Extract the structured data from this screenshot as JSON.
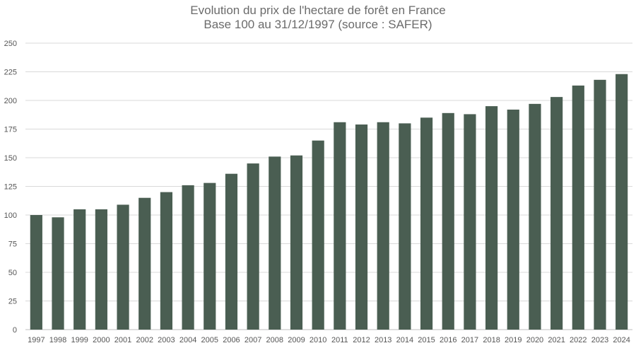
{
  "chart_data": {
    "type": "bar",
    "title_line1": "Evolution du prix de l'hectare de forêt en France",
    "title_line2": "Base 100 au 31/12/1997 (source : SAFER)",
    "categories": [
      "1997",
      "1998",
      "1999",
      "2000",
      "2001",
      "2002",
      "2003",
      "2004",
      "2005",
      "2006",
      "2007",
      "2008",
      "2009",
      "2010",
      "2011",
      "2012",
      "2013",
      "2014",
      "2015",
      "2016",
      "2017",
      "2018",
      "2019",
      "2020",
      "2021",
      "2022",
      "2023",
      "2024"
    ],
    "values": [
      100,
      98,
      105,
      105,
      109,
      115,
      120,
      126,
      128,
      136,
      145,
      151,
      152,
      165,
      181,
      179,
      181,
      180,
      185,
      189,
      188,
      195,
      192,
      197,
      203,
      213,
      218,
      223
    ],
    "yticks": [
      0,
      25,
      50,
      75,
      100,
      125,
      150,
      175,
      200,
      225,
      250
    ],
    "ylim": [
      0,
      250
    ],
    "grid": true,
    "legend": "none",
    "bar_color": "#4a5e52",
    "grid_color": "#d9d9d9"
  }
}
